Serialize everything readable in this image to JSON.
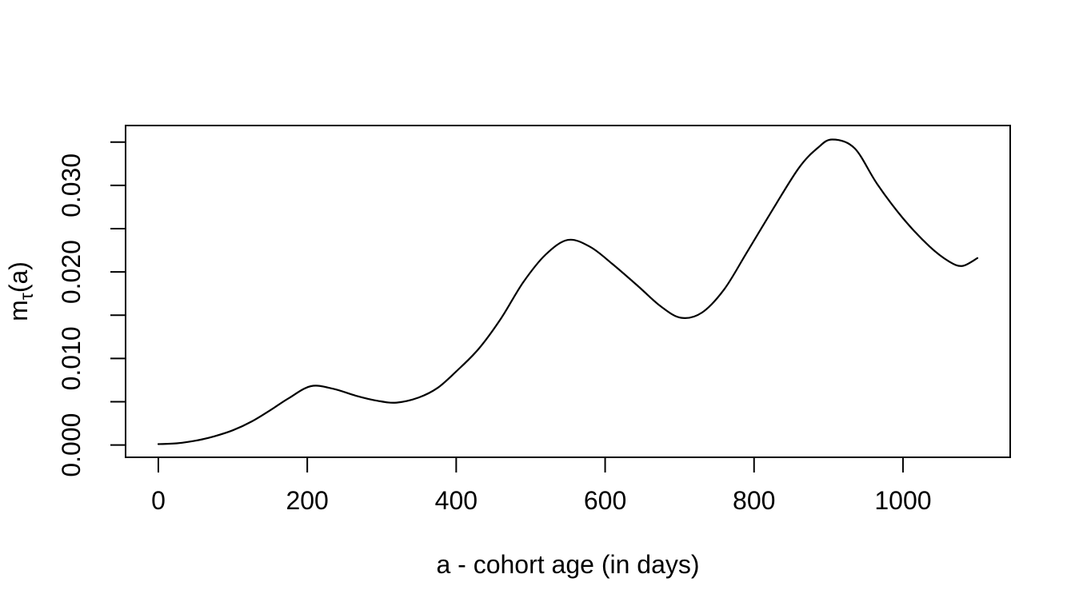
{
  "figure": {
    "background": "#ffffff",
    "foreground": "#000000"
  },
  "chart_data": {
    "type": "line",
    "title": "",
    "xlabel": "a - cohort age (in days)",
    "ylabel": "mτ(a)",
    "ylabel_parts": {
      "main": "m",
      "sub": "τ",
      "rest": "(a)"
    },
    "xlim": [
      -44,
      1144
    ],
    "ylim": [
      -0.00142,
      0.03692
    ],
    "x_data_range": [
      0,
      1100
    ],
    "y_data_range": [
      0,
      0.0355
    ],
    "grid": "off",
    "legend": "none",
    "x_ticks": [
      {
        "value": 0,
        "label": "0"
      },
      {
        "value": 200,
        "label": "200"
      },
      {
        "value": 400,
        "label": "400"
      },
      {
        "value": 600,
        "label": "600"
      },
      {
        "value": 800,
        "label": "800"
      },
      {
        "value": 1000,
        "label": "1000"
      }
    ],
    "y_ticks": [
      {
        "value": 0.0,
        "label": "0.000"
      },
      {
        "value": 0.005,
        "label": ""
      },
      {
        "value": 0.01,
        "label": "0.010"
      },
      {
        "value": 0.015,
        "label": ""
      },
      {
        "value": 0.02,
        "label": "0.020"
      },
      {
        "value": 0.025,
        "label": ""
      },
      {
        "value": 0.03,
        "label": "0.030"
      },
      {
        "value": 0.035,
        "label": ""
      }
    ],
    "series": [
      {
        "name": "m_tau(a)",
        "color": "#000000",
        "points": [
          [
            0,
            0.0001
          ],
          [
            25,
            0.0002
          ],
          [
            50,
            0.0005
          ],
          [
            75,
            0.001
          ],
          [
            100,
            0.0017
          ],
          [
            125,
            0.0027
          ],
          [
            150,
            0.004
          ],
          [
            175,
            0.0054
          ],
          [
            205,
            0.0068
          ],
          [
            235,
            0.0065
          ],
          [
            265,
            0.0057
          ],
          [
            295,
            0.0051
          ],
          [
            320,
            0.0049
          ],
          [
            350,
            0.0055
          ],
          [
            375,
            0.0066
          ],
          [
            400,
            0.0085
          ],
          [
            430,
            0.0111
          ],
          [
            460,
            0.0146
          ],
          [
            490,
            0.0188
          ],
          [
            520,
            0.022
          ],
          [
            550,
            0.0237
          ],
          [
            580,
            0.0229
          ],
          [
            610,
            0.0209
          ],
          [
            645,
            0.0183
          ],
          [
            675,
            0.016
          ],
          [
            702,
            0.0147
          ],
          [
            730,
            0.0153
          ],
          [
            760,
            0.018
          ],
          [
            790,
            0.0222
          ],
          [
            825,
            0.0272
          ],
          [
            860,
            0.032
          ],
          [
            885,
            0.0343
          ],
          [
            905,
            0.0353
          ],
          [
            935,
            0.0343
          ],
          [
            965,
            0.0302
          ],
          [
            1000,
            0.0262
          ],
          [
            1035,
            0.023
          ],
          [
            1062,
            0.0212
          ],
          [
            1080,
            0.0207
          ],
          [
            1100,
            0.0216
          ]
        ]
      }
    ]
  }
}
